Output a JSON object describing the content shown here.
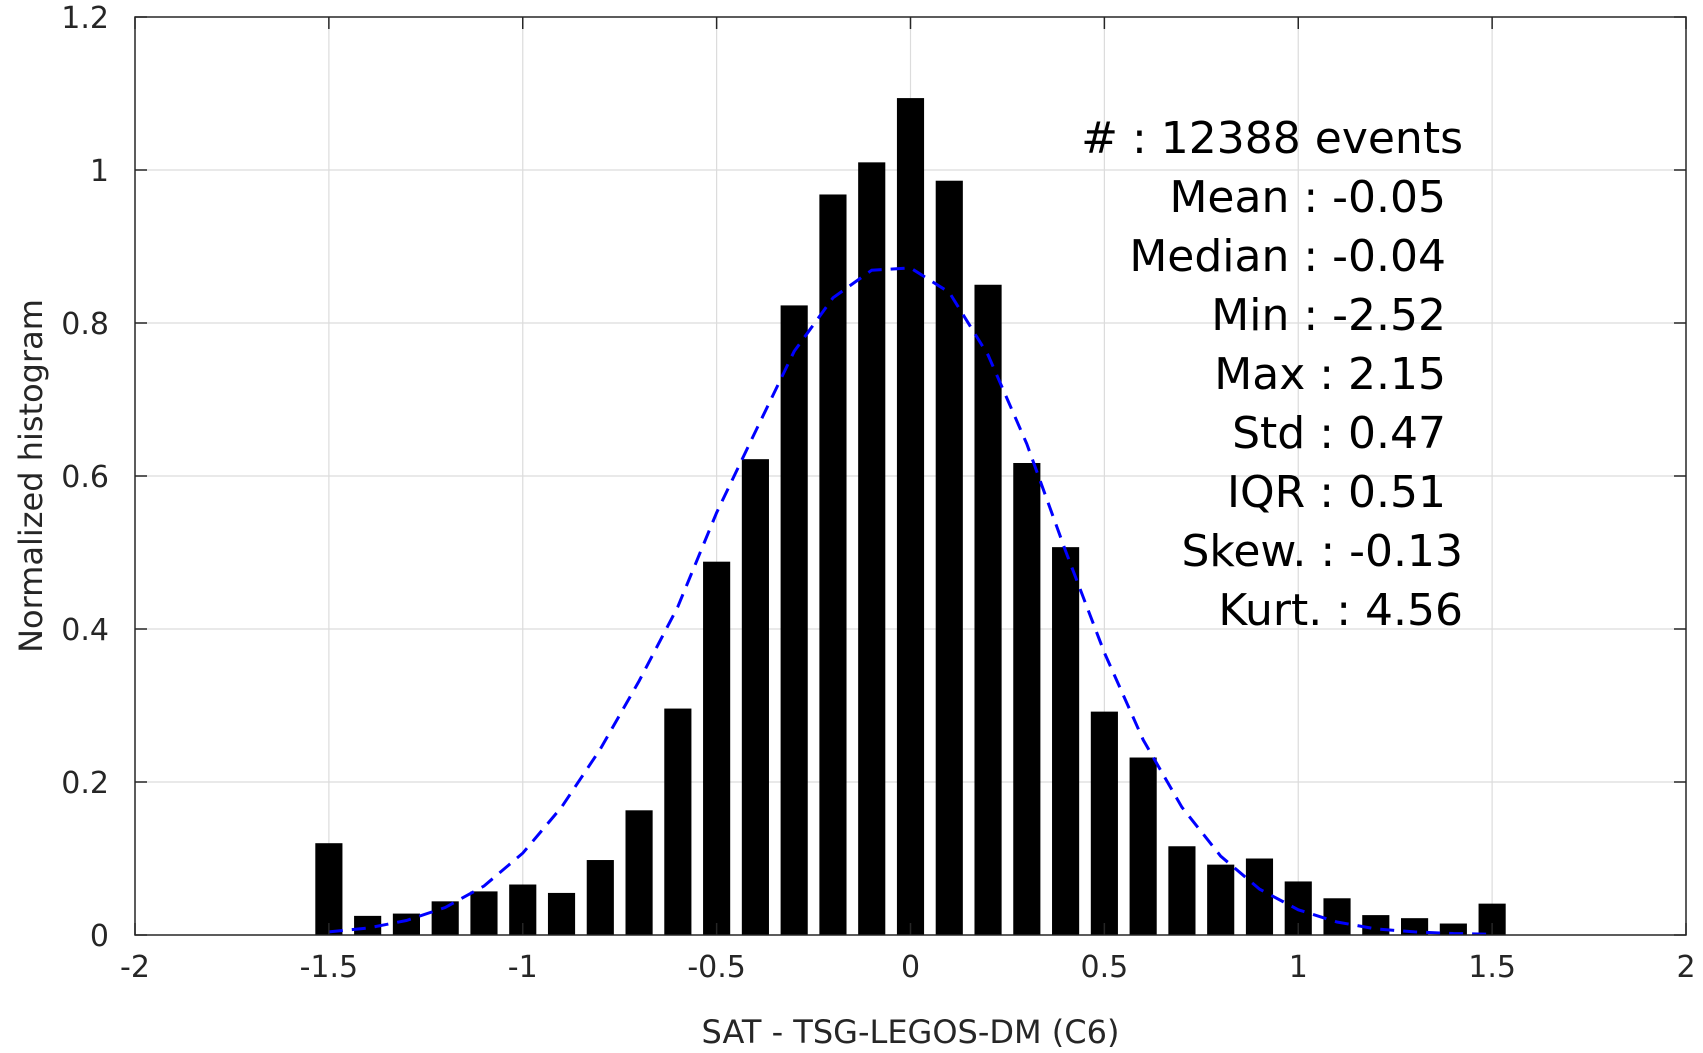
{
  "chart_data": {
    "type": "bar",
    "xlabel": "SAT - TSG-LEGOS-DM (C6)",
    "ylabel": "Normalized histogram",
    "xlim": [
      -2,
      2
    ],
    "ylim": [
      0,
      1.2
    ],
    "grid": true,
    "x_ticks": [
      "-2",
      "-1.5",
      "-1",
      "-0.5",
      "0",
      "0.5",
      "1",
      "1.5",
      "2"
    ],
    "x_tick_values": [
      -2,
      -1.5,
      -1,
      -0.5,
      0,
      0.5,
      1,
      1.5,
      2
    ],
    "y_ticks": [
      "0",
      "0.2",
      "0.4",
      "0.6",
      "0.8",
      "1",
      "1.2"
    ],
    "y_tick_values": [
      0,
      0.2,
      0.4,
      0.6,
      0.8,
      1,
      1.2
    ],
    "bar_color": "#000000",
    "bar_width": 0.07,
    "x": [
      -1.5,
      -1.4,
      -1.3,
      -1.2,
      -1.1,
      -1.0,
      -0.9,
      -0.8,
      -0.7,
      -0.6,
      -0.5,
      -0.4,
      -0.3,
      -0.2,
      -0.1,
      0.0,
      0.1,
      0.2,
      0.3,
      0.4,
      0.5,
      0.6,
      0.7,
      0.8,
      0.9,
      1.0,
      1.1,
      1.2,
      1.3,
      1.4,
      1.5
    ],
    "values": [
      0.12,
      0.025,
      0.028,
      0.044,
      0.057,
      0.066,
      0.055,
      0.098,
      0.163,
      0.296,
      0.488,
      0.622,
      0.823,
      0.968,
      1.01,
      1.094,
      0.986,
      0.85,
      0.617,
      0.507,
      0.292,
      0.232,
      0.116,
      0.092,
      0.1,
      0.07,
      0.048,
      0.026,
      0.022,
      0.015,
      0.041
    ],
    "fit_curve": {
      "style": "dashed",
      "color": "#0000ff",
      "x": [
        -1.5,
        -1.4,
        -1.3,
        -1.2,
        -1.1,
        -1.0,
        -0.9,
        -0.8,
        -0.7,
        -0.6,
        -0.5,
        -0.4,
        -0.3,
        -0.2,
        -0.1,
        0.0,
        0.1,
        0.2,
        0.3,
        0.4,
        0.5,
        0.6,
        0.7,
        0.8,
        0.9,
        1.0,
        1.1,
        1.2,
        1.3,
        1.4,
        1.5
      ],
      "y": [
        0.004,
        0.009,
        0.019,
        0.036,
        0.064,
        0.107,
        0.167,
        0.243,
        0.332,
        0.429,
        0.552,
        0.658,
        0.763,
        0.833,
        0.869,
        0.872,
        0.84,
        0.758,
        0.642,
        0.502,
        0.369,
        0.255,
        0.167,
        0.103,
        0.06,
        0.033,
        0.017,
        0.008,
        0.004,
        0.002,
        0.001
      ]
    },
    "annotations": [
      "#  : 12388 events",
      "Mean : -0.05",
      "Median : -0.04",
      "Min : -2.52",
      "Max : 2.15",
      "Std : 0.47",
      "IQR : 0.51",
      "Skew. : -0.13",
      "Kurt. : 4.56"
    ]
  }
}
